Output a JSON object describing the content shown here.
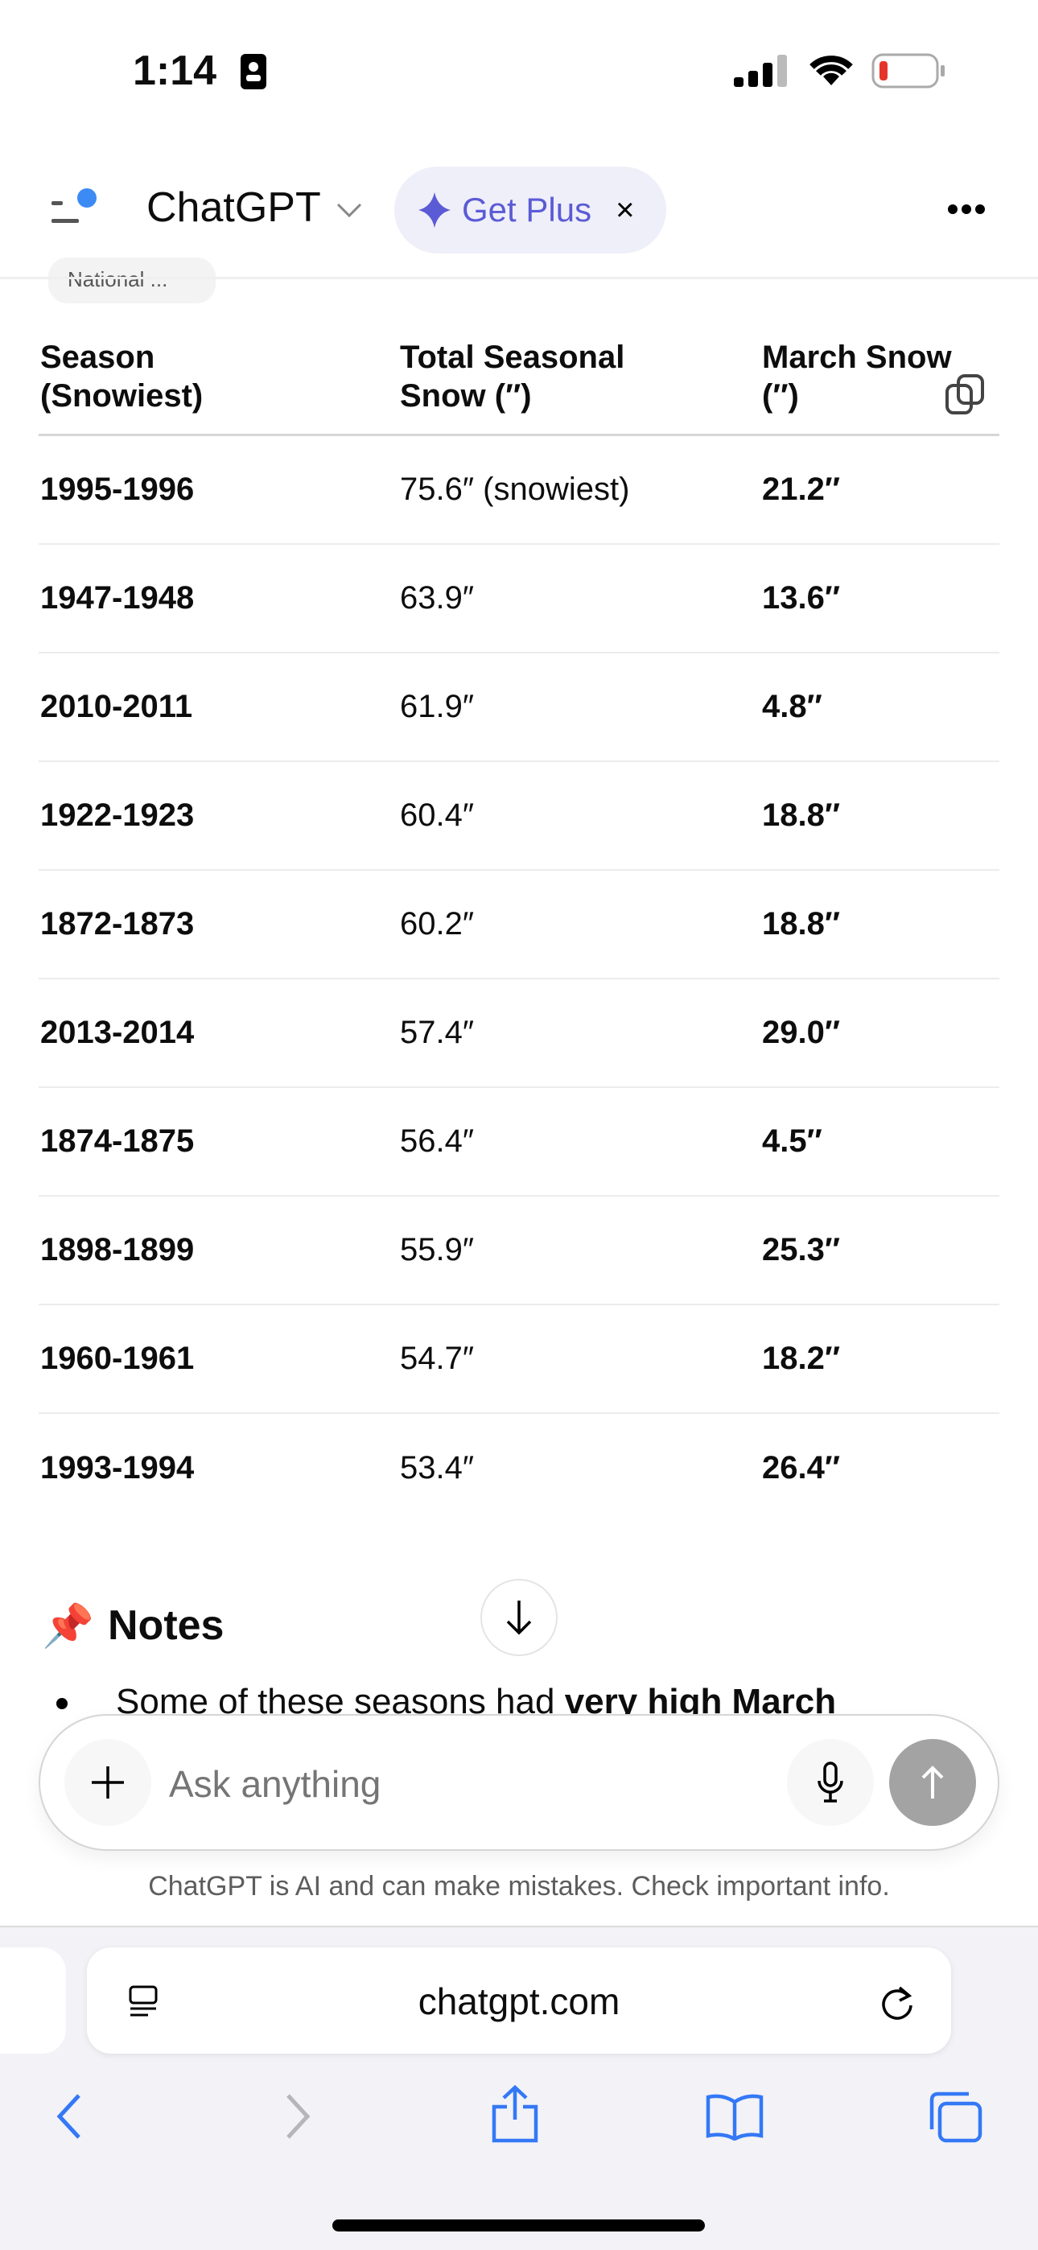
{
  "status_bar": {
    "time": "1:14"
  },
  "header": {
    "title": "ChatGPT",
    "get_plus": "Get Plus",
    "close": "×",
    "accent": "#5b5bd6"
  },
  "source_chip": "National ...",
  "table": {
    "headers": [
      [
        "Season",
        "(Snowiest)"
      ],
      [
        "Total Seasonal",
        "Snow (″)"
      ],
      [
        "March Snow",
        "(″)"
      ]
    ],
    "rows": [
      [
        "1995-1996",
        "75.6″ (snowiest)",
        "21.2″"
      ],
      [
        "1947-1948",
        "63.9″",
        "13.6″"
      ],
      [
        "2010-2011",
        "61.9″",
        "4.8″"
      ],
      [
        "1922-1923",
        "60.4″",
        "18.8″"
      ],
      [
        "1872-1873",
        "60.2″",
        "18.8″"
      ],
      [
        "2013-2014",
        "57.4″",
        "29.0″"
      ],
      [
        "1874-1875",
        "56.4″",
        "4.5″"
      ],
      [
        "1898-1899",
        "55.9″",
        "25.3″"
      ],
      [
        "1960-1961",
        "54.7″",
        "18.2″"
      ],
      [
        "1993-1994",
        "53.4″",
        "26.4″"
      ]
    ]
  },
  "notes": {
    "emoji": "📌",
    "title": "Notes",
    "bullet_start": "Some of these seasons had ",
    "bullet_bold": "very high March"
  },
  "composer": {
    "placeholder": "Ask anything"
  },
  "disclaimer": "ChatGPT is AI and can make mistakes. Check important info.",
  "browser": {
    "url": "chatgpt.com",
    "accent": "#3478f6"
  }
}
